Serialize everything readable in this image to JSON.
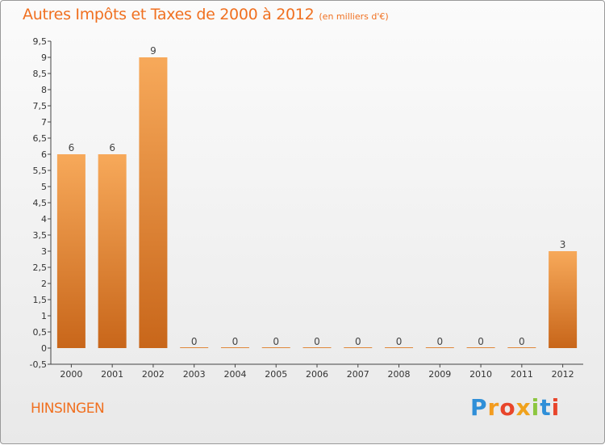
{
  "chart_data": {
    "type": "bar",
    "title": "Autres Impôts et Taxes de 2000 à 2012",
    "subtitle": "(en milliers d'€)",
    "categories": [
      "2000",
      "2001",
      "2002",
      "2003",
      "2004",
      "2005",
      "2006",
      "2007",
      "2008",
      "2009",
      "2010",
      "2011",
      "2012"
    ],
    "values": [
      6,
      6,
      9,
      0,
      0,
      0,
      0,
      0,
      0,
      0,
      0,
      0,
      3
    ],
    "data_labels": [
      "6",
      "6",
      "9",
      "0",
      "0",
      "0",
      "0",
      "0",
      "0",
      "0",
      "0",
      "0",
      "3"
    ],
    "ylim": [
      -0.5,
      9.5
    ],
    "yticks": [
      "-0,5",
      "0",
      "0,5",
      "1",
      "1,5",
      "2",
      "2,5",
      "3",
      "3,5",
      "4",
      "4,5",
      "5",
      "5,5",
      "6",
      "6,5",
      "7",
      "7,5",
      "8",
      "8,5",
      "9",
      "9,5"
    ],
    "ytick_values": [
      -0.5,
      0,
      0.5,
      1,
      1.5,
      2,
      2.5,
      3,
      3.5,
      4,
      4.5,
      5,
      5.5,
      6,
      6.5,
      7,
      7.5,
      8,
      8.5,
      9,
      9.5
    ],
    "xlabel": "",
    "ylabel": "",
    "grid": false,
    "colors": {
      "bar_top": "#f7a95a",
      "bar_bottom": "#c8661a",
      "text": "#f07020"
    }
  },
  "footer": {
    "commune": "HINSINGEN",
    "brand_letters": [
      "P",
      "r",
      "o",
      "x",
      "i",
      "t",
      "i"
    ],
    "brand_colors": [
      "#2f8fd8",
      "#f39c1f",
      "#e8452b",
      "#f0a21d",
      "#8cc63f",
      "#2f8fd8",
      "#e8452b"
    ]
  }
}
